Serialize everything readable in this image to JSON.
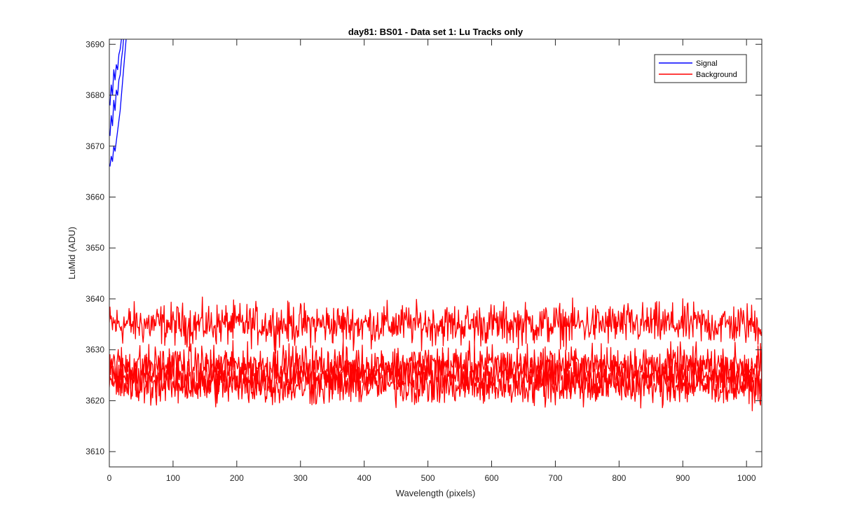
{
  "chart_data": {
    "type": "line",
    "title": "day81: BS01 - Data set 1: Lu Tracks only",
    "xlabel": "Wavelength (pixels)",
    "ylabel": "LuMid (ADU)",
    "xlim": [
      0,
      1024
    ],
    "ylim": [
      3607,
      3691
    ],
    "xticks": [
      0,
      100,
      200,
      300,
      400,
      500,
      600,
      700,
      800,
      900,
      1000
    ],
    "yticks": [
      3610,
      3620,
      3630,
      3640,
      3650,
      3660,
      3670,
      3680,
      3690
    ],
    "grid": false,
    "legend_position": "top-right",
    "legend": [
      {
        "label": "Signal",
        "color": "#0000ff"
      },
      {
        "label": "Background",
        "color": "#ff0000"
      }
    ],
    "series": [
      {
        "name": "Signal",
        "color": "#0000ff",
        "x": [
          1,
          3,
          5,
          7,
          9,
          11,
          13,
          15,
          17,
          19,
          21,
          23,
          25,
          27
        ],
        "y": [
          3666,
          3668,
          3667,
          3670,
          3669,
          3671,
          3673,
          3675,
          3677,
          3680,
          3683,
          3686,
          3689,
          3692
        ]
      },
      {
        "name": "Signal",
        "color": "#0000ff",
        "x": [
          1,
          3,
          5,
          7,
          9,
          11,
          13,
          15,
          17,
          19,
          21,
          23
        ],
        "y": [
          3672,
          3676,
          3674,
          3679,
          3677,
          3681,
          3680,
          3683,
          3684,
          3687,
          3689,
          3692
        ]
      },
      {
        "name": "Signal",
        "color": "#0000ff",
        "x": [
          1,
          3,
          5,
          7,
          9,
          11,
          13,
          15,
          17,
          19,
          21
        ],
        "y": [
          3678,
          3682,
          3680,
          3685,
          3683,
          3686,
          3685,
          3688,
          3689,
          3691,
          3693
        ]
      },
      {
        "name": "Background",
        "color": "#ff0000",
        "x_range": [
          0,
          1024
        ],
        "level": 3635,
        "amplitude": 2.0
      },
      {
        "name": "Background",
        "color": "#ff0000",
        "x_range": [
          0,
          1024
        ],
        "level": 3627,
        "amplitude": 1.9
      },
      {
        "name": "Background",
        "color": "#ff0000",
        "x_range": [
          0,
          1024
        ],
        "level": 3625,
        "amplitude": 1.9
      },
      {
        "name": "Background",
        "color": "#ff0000",
        "x_range": [
          0,
          1024
        ],
        "level": 3623,
        "amplitude": 1.9
      }
    ]
  }
}
